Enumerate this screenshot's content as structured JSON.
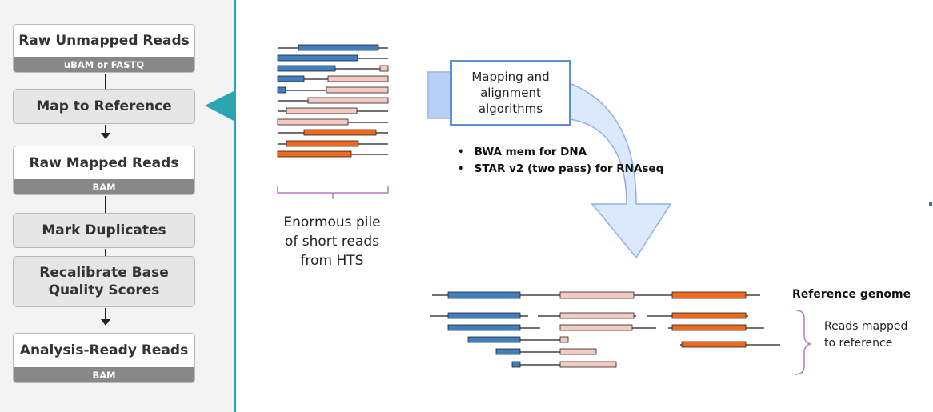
{
  "pipeline": {
    "raw_unmapped": {
      "title": "Raw Unmapped Reads",
      "sub": "uBAM or FASTQ"
    },
    "map_to_reference": "Map to Reference",
    "raw_mapped": {
      "title": "Raw Mapped Reads",
      "sub": "BAM"
    },
    "mark_duplicates": "Mark Duplicates",
    "recalibrate": "Recalibrate Base Quality Scores",
    "analysis_ready": {
      "title": "Analysis-Ready Reads",
      "sub": "BAM"
    }
  },
  "pile_caption": "Enormous pile of short reads from HTS",
  "algorithm_box": "Mapping and alignment algorithms",
  "bullets": [
    "BWA mem for DNA",
    "STAR v2 (two pass) for RNAseq"
  ],
  "reference_label": "Reference genome",
  "reads_label": "Reads mapped to reference",
  "colors": {
    "blue": "#3f7fc0",
    "pink": "#f4c9c2",
    "orange": "#f06a1e",
    "teal": "#2aa6b3",
    "arrow": "#dbe8fb"
  }
}
